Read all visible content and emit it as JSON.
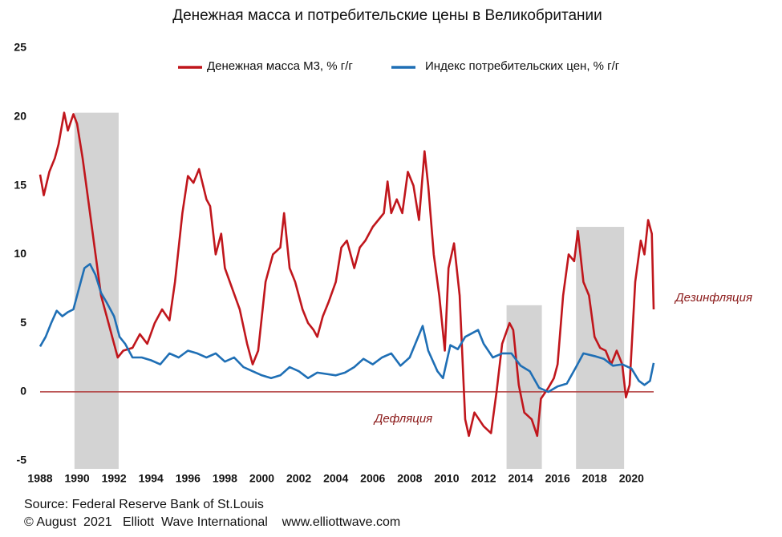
{
  "chart_data": {
    "type": "line",
    "title": "Денежная масса и потребительские цены в Великобритании",
    "annotations": [
      "Дезинфляция",
      "Дефляция"
    ],
    "source": [
      "Source: Federal Reserve Bank of St.Louis",
      "© August  2021   Elliott  Wave International    www.elliottwave.com"
    ],
    "xlim": [
      1988,
      2021.2
    ],
    "ylim": [
      -5.6,
      25
    ],
    "xticks": [
      1988,
      1990,
      1992,
      1994,
      1996,
      1998,
      2000,
      2002,
      2004,
      2006,
      2008,
      2010,
      2012,
      2014,
      2016,
      2018,
      2020
    ],
    "yticks": [
      -5,
      0,
      5,
      10,
      15,
      20,
      25
    ],
    "shaded_periods": [
      {
        "x": [
          1989.86,
          1992.25
        ],
        "top": 20.3
      },
      {
        "x": [
          2013.24,
          2015.15
        ],
        "top": 6.3
      },
      {
        "x": [
          2017.0,
          2019.6
        ],
        "top": 12
      }
    ],
    "shade_color": "#d3d3d3",
    "series": [
      {
        "name": "Денежная масса М3, % г/г",
        "color": "#c0161c",
        "x": [
          1988.0,
          1988.2,
          1988.5,
          1988.8,
          1989.0,
          1989.3,
          1989.5,
          1989.8,
          1990.0,
          1990.3,
          1990.6,
          1991.0,
          1991.3,
          1991.6,
          1992.0,
          1992.2,
          1992.5,
          1993.0,
          1993.4,
          1993.8,
          1994.2,
          1994.6,
          1995.0,
          1995.3,
          1995.7,
          1996.0,
          1996.3,
          1996.6,
          1997.0,
          1997.2,
          1997.5,
          1997.8,
          1998.0,
          1998.4,
          1998.8,
          1999.2,
          1999.5,
          1999.8,
          2000.2,
          2000.6,
          2001.0,
          2001.2,
          2001.5,
          2001.8,
          2002.2,
          2002.5,
          2002.8,
          2003.0,
          2003.3,
          2003.6,
          2004.0,
          2004.3,
          2004.6,
          2005.0,
          2005.3,
          2005.6,
          2006.0,
          2006.3,
          2006.6,
          2006.8,
          2007.0,
          2007.3,
          2007.6,
          2007.9,
          2008.2,
          2008.5,
          2008.8,
          2009.0,
          2009.3,
          2009.6,
          2009.9,
          2010.1,
          2010.4,
          2010.7,
          2011.0,
          2011.2,
          2011.5,
          2012.0,
          2012.4,
          2012.7,
          2013.0,
          2013.4,
          2013.6,
          2013.9,
          2014.2,
          2014.6,
          2014.9,
          2015.1,
          2015.5,
          2015.8,
          2016.0,
          2016.3,
          2016.6,
          2016.9,
          2017.1,
          2017.4,
          2017.7,
          2018.0,
          2018.3,
          2018.6,
          2018.9,
          2019.2,
          2019.5,
          2019.7,
          2019.9,
          2020.2,
          2020.5,
          2020.7,
          2020.9,
          2021.1,
          2021.2
        ],
        "values": [
          15.8,
          14.3,
          16,
          17,
          18,
          20.3,
          19,
          20.2,
          19.5,
          17,
          14,
          10,
          7,
          5.5,
          3.5,
          2.5,
          3,
          3.2,
          4.2,
          3.5,
          5,
          6,
          5.2,
          8,
          13,
          15.7,
          15.2,
          16.2,
          14,
          13.5,
          10,
          11.5,
          9,
          7.5,
          6,
          3.5,
          2,
          3,
          8,
          10,
          10.5,
          13,
          9,
          8,
          6,
          5,
          4.5,
          4,
          5.5,
          6.5,
          8,
          10.5,
          11,
          9,
          10.5,
          11,
          12,
          12.5,
          13,
          15.3,
          13,
          14,
          13,
          16,
          15,
          12.5,
          17.5,
          15,
          10,
          7,
          3,
          9,
          10.8,
          7,
          -2,
          -3.2,
          -1.5,
          -2.5,
          -3,
          0,
          3.5,
          5,
          4.5,
          0.5,
          -1.5,
          -2,
          -3.2,
          -0.5,
          0.3,
          1,
          2,
          7,
          10,
          9.5,
          11.7,
          8,
          7,
          4,
          3.2,
          3,
          2,
          3,
          2,
          -0.4,
          0.5,
          8,
          11,
          10,
          12.5,
          11.5,
          6
        ]
      },
      {
        "name": "Индекс потребительских цен, % г/г",
        "color": "#1f6fb5",
        "x": [
          1988.0,
          1988.3,
          1988.6,
          1988.9,
          1989.2,
          1989.5,
          1989.8,
          1990.1,
          1990.4,
          1990.7,
          1991.0,
          1991.3,
          1991.6,
          1992.0,
          1992.3,
          1992.6,
          1993.0,
          1993.5,
          1994.0,
          1994.5,
          1995.0,
          1995.5,
          1996.0,
          1996.5,
          1997.0,
          1997.5,
          1998.0,
          1998.5,
          1999.0,
          1999.5,
          2000.0,
          2000.5,
          2001.0,
          2001.5,
          2002.0,
          2002.5,
          2003.0,
          2003.5,
          2004.0,
          2004.5,
          2005.0,
          2005.5,
          2006.0,
          2006.5,
          2007.0,
          2007.5,
          2008.0,
          2008.7,
          2009.0,
          2009.5,
          2009.8,
          2010.2,
          2010.6,
          2011.0,
          2011.7,
          2012.0,
          2012.5,
          2013.0,
          2013.5,
          2014.0,
          2014.5,
          2015.0,
          2015.5,
          2016.0,
          2016.5,
          2017.0,
          2017.4,
          2018.0,
          2018.5,
          2019.0,
          2019.5,
          2020.0,
          2020.4,
          2020.7,
          2021.0,
          2021.2
        ],
        "values": [
          3.3,
          4,
          5,
          5.9,
          5.5,
          5.8,
          6,
          7.5,
          9,
          9.3,
          8.5,
          7.2,
          6.5,
          5.5,
          4,
          3.5,
          2.5,
          2.5,
          2.3,
          2,
          2.8,
          2.5,
          3,
          2.8,
          2.5,
          2.8,
          2.2,
          2.5,
          1.8,
          1.5,
          1.2,
          1,
          1.2,
          1.8,
          1.5,
          1,
          1.4,
          1.3,
          1.2,
          1.4,
          1.8,
          2.4,
          2,
          2.5,
          2.8,
          1.9,
          2.5,
          4.8,
          3,
          1.5,
          1,
          3.4,
          3.1,
          4,
          4.5,
          3.5,
          2.5,
          2.8,
          2.8,
          1.9,
          1.5,
          0.3,
          0,
          0.4,
          0.6,
          1.8,
          2.8,
          2.6,
          2.4,
          1.9,
          2,
          1.7,
          0.8,
          0.5,
          0.8,
          2.1
        ]
      }
    ]
  }
}
